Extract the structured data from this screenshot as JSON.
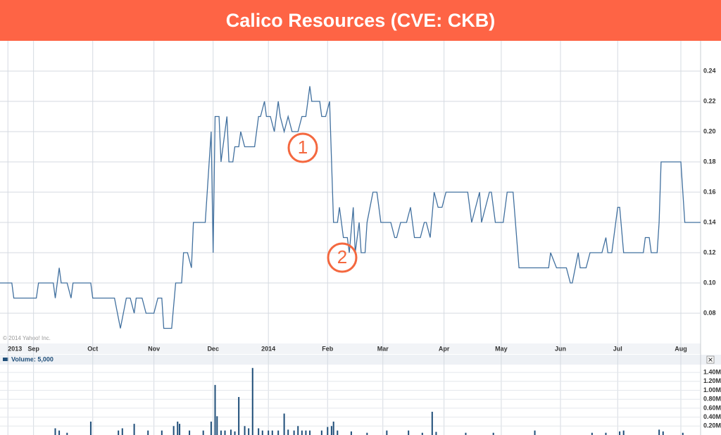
{
  "chart_data": [
    {
      "type": "line",
      "title": "Calico Resources (CVE: CKB)",
      "source": "© 2014 Yahoo! Inc.",
      "annotations": [
        "1",
        "2"
      ],
      "color": "#41709f",
      "grid": true,
      "x": [
        -17,
        -11,
        -10,
        1.4,
        2.5,
        10,
        11,
        13,
        14,
        17,
        19,
        20,
        29,
        30,
        41,
        44,
        47,
        49,
        51,
        52,
        55,
        57,
        61,
        63,
        65,
        66,
        70,
        72,
        75,
        76,
        78,
        80,
        81,
        87,
        90,
        91,
        92,
        94,
        95,
        98,
        99,
        101,
        102,
        104,
        105,
        107,
        112,
        114,
        115,
        117,
        118,
        120,
        122,
        124,
        125,
        127,
        129,
        131,
        134,
        136,
        138,
        140,
        141,
        145,
        146,
        148,
        150,
        152,
        154,
        155,
        157,
        159,
        160,
        162,
        163,
        165,
        166,
        168,
        169,
        172,
        174,
        176,
        181,
        183,
        184,
        186,
        189,
        191,
        193,
        196,
        198,
        199,
        201,
        203,
        205,
        207,
        209,
        220,
        222,
        226,
        227,
        231,
        232,
        234,
        238,
        240,
        243,
        246,
        261,
        262,
        265,
        270,
        272,
        273,
        276,
        277,
        280,
        282,
        288,
        290,
        291,
        293,
        296,
        297,
        299,
        309,
        310,
        312,
        313,
        316,
        317,
        318,
        328,
        330,
        338
      ],
      "values": [
        0.1,
        0.1,
        0.09,
        0.09,
        0.1,
        0.1,
        0.09,
        0.11,
        0.1,
        0.1,
        0.09,
        0.1,
        0.1,
        0.09,
        0.09,
        0.07,
        0.09,
        0.09,
        0.08,
        0.09,
        0.09,
        0.08,
        0.08,
        0.09,
        0.09,
        0.07,
        0.07,
        0.1,
        0.1,
        0.12,
        0.12,
        0.11,
        0.14,
        0.14,
        0.2,
        0.12,
        0.21,
        0.21,
        0.18,
        0.21,
        0.18,
        0.18,
        0.19,
        0.19,
        0.2,
        0.19,
        0.19,
        0.21,
        0.21,
        0.22,
        0.21,
        0.21,
        0.2,
        0.22,
        0.21,
        0.2,
        0.21,
        0.2,
        0.2,
        0.21,
        0.21,
        0.23,
        0.22,
        0.22,
        0.21,
        0.21,
        0.22,
        0.14,
        0.14,
        0.15,
        0.13,
        0.13,
        0.12,
        0.15,
        0.12,
        0.14,
        0.12,
        0.12,
        0.14,
        0.16,
        0.16,
        0.14,
        0.14,
        0.13,
        0.13,
        0.14,
        0.14,
        0.15,
        0.13,
        0.13,
        0.14,
        0.14,
        0.13,
        0.16,
        0.15,
        0.15,
        0.16,
        0.16,
        0.14,
        0.16,
        0.14,
        0.16,
        0.16,
        0.14,
        0.14,
        0.16,
        0.16,
        0.11,
        0.11,
        0.12,
        0.11,
        0.11,
        0.1,
        0.1,
        0.12,
        0.11,
        0.11,
        0.12,
        0.12,
        0.13,
        0.12,
        0.12,
        0.15,
        0.15,
        0.12,
        0.12,
        0.13,
        0.13,
        0.12,
        0.12,
        0.14,
        0.18,
        0.18,
        0.14,
        0.14
      ],
      "xlim": [
        -17,
        338
      ],
      "xticks": [
        {
          "value": -13,
          "label": "2013"
        },
        {
          "value": 0,
          "label": "Sep"
        },
        {
          "value": 30,
          "label": "Oct"
        },
        {
          "value": 61,
          "label": "Nov"
        },
        {
          "value": 91,
          "label": "Dec"
        },
        {
          "value": 119,
          "label": "2014"
        },
        {
          "value": 149,
          "label": "Feb"
        },
        {
          "value": 177,
          "label": "Mar"
        },
        {
          "value": 208,
          "label": "Apr"
        },
        {
          "value": 237,
          "label": "May"
        },
        {
          "value": 267,
          "label": "Jun"
        },
        {
          "value": 296,
          "label": "Jul"
        },
        {
          "value": 328,
          "label": "Aug"
        }
      ],
      "ylim": [
        0.06,
        0.26
      ],
      "yticks": [
        {
          "value": 0.08,
          "label": "0.08"
        },
        {
          "value": 0.1,
          "label": "0.10"
        },
        {
          "value": 0.12,
          "label": "0.12"
        },
        {
          "value": 0.14,
          "label": "0.14"
        },
        {
          "value": 0.16,
          "label": "0.16"
        },
        {
          "value": 0.18,
          "label": "0.18"
        },
        {
          "value": 0.2,
          "label": "0.20"
        },
        {
          "value": 0.22,
          "label": "0.22"
        },
        {
          "value": 0.24,
          "label": "0.24"
        }
      ]
    },
    {
      "type": "bar",
      "legend": "Volume: 5,000",
      "color": "#1f4e79",
      "x": [
        11,
        13,
        17,
        29,
        43,
        45,
        51,
        58,
        65,
        71,
        73,
        74,
        79,
        86,
        90,
        92,
        93,
        95,
        97,
        100,
        102,
        104,
        107,
        109,
        111,
        114,
        116,
        119,
        121,
        124,
        127,
        129,
        132,
        134,
        136,
        138,
        140,
        146,
        149,
        151,
        152,
        154,
        161,
        169,
        179,
        190,
        197,
        202,
        204,
        219,
        233,
        254,
        283,
        290,
        297,
        299,
        317,
        319,
        329
      ],
      "values": [
        150000,
        100000,
        50000,
        300000,
        100000,
        150000,
        250000,
        100000,
        100000,
        200000,
        300000,
        250000,
        100000,
        100000,
        300000,
        1120000,
        420000,
        100000,
        100000,
        120000,
        80000,
        850000,
        200000,
        150000,
        1500000,
        150000,
        100000,
        100000,
        100000,
        100000,
        480000,
        120000,
        100000,
        200000,
        100000,
        100000,
        100000,
        100000,
        180000,
        200000,
        300000,
        100000,
        80000,
        50000,
        100000,
        100000,
        50000,
        520000,
        70000,
        50000,
        50000,
        100000,
        50000,
        50000,
        80000,
        100000,
        120000,
        80000,
        50000
      ],
      "xlim": [
        -17,
        338
      ],
      "ylim": [
        0,
        1575000
      ],
      "yticks": [
        {
          "value": 200000,
          "label": "0.20M"
        },
        {
          "value": 400000,
          "label": "0.40M"
        },
        {
          "value": 600000,
          "label": "0.60M"
        },
        {
          "value": 800000,
          "label": "0.80M"
        },
        {
          "value": 1000000,
          "label": "1.00M"
        },
        {
          "value": 1200000,
          "label": "1.20M"
        },
        {
          "value": 1400000,
          "label": "1.40M"
        }
      ]
    }
  ]
}
